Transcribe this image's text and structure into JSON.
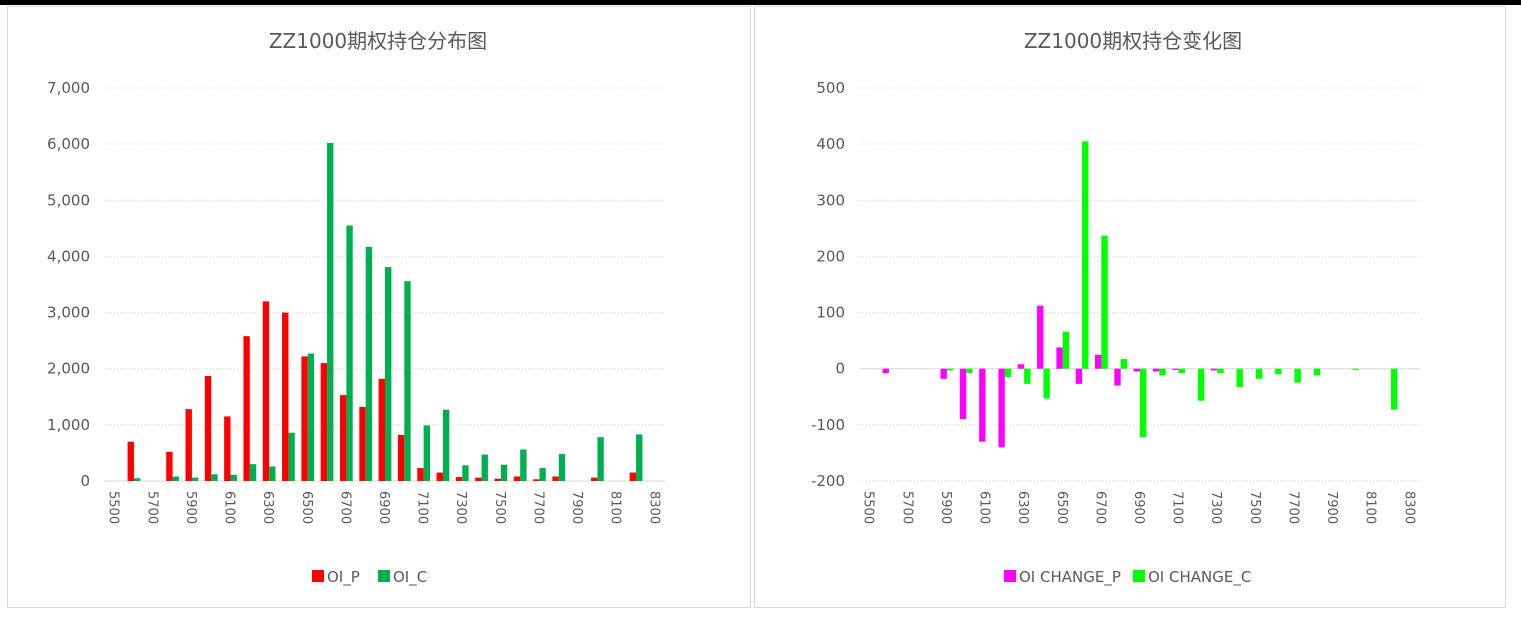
{
  "chart_data": [
    {
      "type": "bar",
      "title": "ZZ1000期权持仓分布图",
      "categories": [
        "5500",
        null,
        "5700",
        null,
        "5900",
        null,
        "6100",
        null,
        "6300",
        null,
        "6500",
        null,
        "6700",
        null,
        "6900",
        null,
        "7100",
        null,
        "7300",
        null,
        "7500",
        null,
        "7700",
        null,
        "7900",
        null,
        "8100",
        null,
        "8300"
      ],
      "series": [
        {
          "name": "OI_P",
          "color": "#ff0000",
          "values": [
            0,
            700,
            0,
            520,
            1280,
            1870,
            1150,
            2580,
            3200,
            3000,
            2220,
            2100,
            1530,
            1320,
            1820,
            820,
            230,
            150,
            70,
            60,
            40,
            80,
            30,
            80,
            0,
            60,
            0,
            150,
            0
          ]
        },
        {
          "name": "OI_C",
          "color": "#00b050",
          "values": [
            0,
            50,
            0,
            80,
            60,
            120,
            110,
            300,
            260,
            860,
            2270,
            6020,
            4550,
            4170,
            3810,
            3560,
            990,
            1270,
            280,
            470,
            290,
            560,
            230,
            480,
            0,
            780,
            0,
            830,
            0
          ]
        }
      ],
      "ylim": [
        0,
        7000
      ],
      "yticks": [
        0,
        {
          "value": 1000,
          "label": "1,000"
        },
        {
          "value": 2000,
          "label": "2,000"
        },
        {
          "value": 3000,
          "label": "3,000"
        },
        {
          "value": 4000,
          "label": "4,000"
        },
        {
          "value": 5000,
          "label": "5,000"
        },
        {
          "value": 6000,
          "label": "6,000"
        },
        {
          "value": 7000,
          "label": "7,000"
        }
      ],
      "grid": true,
      "legend": "bottom"
    },
    {
      "type": "bar",
      "title": "ZZ1000期权持仓变化图",
      "categories": [
        "5500",
        null,
        "5700",
        null,
        "5900",
        null,
        "6100",
        null,
        "6300",
        null,
        "6500",
        null,
        "6700",
        null,
        "6900",
        null,
        "7100",
        null,
        "7300",
        null,
        "7500",
        null,
        "7700",
        null,
        "7900",
        null,
        "8100",
        null,
        "8300"
      ],
      "series": [
        {
          "name": "OI CHANGE_P",
          "color": "#ff00ff",
          "values": [
            0,
            -8,
            0,
            0,
            -18,
            -90,
            -130,
            -140,
            8,
            112,
            38,
            -27,
            25,
            -30,
            -5,
            -5,
            -2,
            0,
            -3,
            0,
            0,
            0,
            0,
            0,
            0,
            0,
            0,
            0,
            0
          ]
        },
        {
          "name": "OI CHANGE_C",
          "color": "#00ff00",
          "values": [
            0,
            0,
            0,
            0,
            -3,
            -8,
            0,
            -15,
            -27,
            -53,
            66,
            405,
            237,
            17,
            -122,
            -12,
            -8,
            -57,
            -8,
            -33,
            -18,
            -10,
            -25,
            -12,
            0,
            -2,
            0,
            -73,
            0
          ]
        }
      ],
      "ylim": [
        -200,
        500
      ],
      "yticks": [
        -200,
        -100,
        0,
        100,
        200,
        300,
        400,
        500
      ],
      "grid": true,
      "legend": "bottom"
    }
  ]
}
